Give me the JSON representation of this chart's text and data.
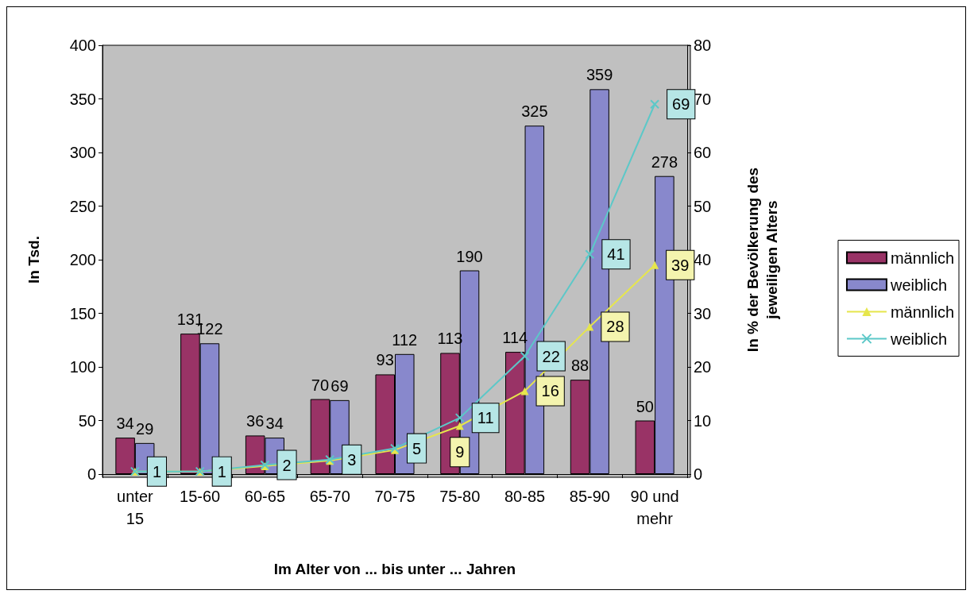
{
  "chart_data": {
    "type": "bar",
    "xlabel": "Im Alter von ... bis unter ... Jahren",
    "ylabel": "In Tsd.",
    "y2label": "In % der Bevölkerung des\njeweiligen Alters",
    "categories": [
      "unter\n15",
      "15-60",
      "60-65",
      "65-70",
      "70-75",
      "75-80",
      "80-85",
      "85-90",
      "90 und\nmehr"
    ],
    "series": [
      {
        "name": "männlich",
        "color": "#993366",
        "values": [
          34,
          131,
          36,
          70,
          93,
          113,
          114,
          88,
          50
        ],
        "value_labels": [
          "34",
          "131",
          "36",
          "70",
          "93",
          "113",
          "114",
          "88",
          "50"
        ]
      },
      {
        "name": "weiblich",
        "color": "#8888cc",
        "values": [
          29,
          122,
          34,
          69,
          112,
          190,
          325,
          359,
          278
        ],
        "value_labels": [
          "29",
          "122",
          "34",
          "69",
          "112",
          "190",
          "325",
          "359",
          "278"
        ]
      },
      {
        "name": "männlich",
        "type": "line",
        "axis": "y2",
        "color": "#e6e64c",
        "marker": "triangle",
        "values": [
          0.5,
          0.5,
          1.5,
          2.5,
          4.5,
          9,
          15.5,
          27.5,
          39
        ],
        "value_labels": [
          null,
          null,
          null,
          null,
          null,
          "9",
          "16",
          "28",
          "39"
        ]
      },
      {
        "name": "weiblich",
        "type": "line",
        "axis": "y2",
        "color": "#5cc8c8",
        "marker": "cross",
        "values": [
          0.5,
          0.5,
          1.7,
          2.7,
          4.8,
          10.5,
          22,
          41,
          69
        ],
        "value_labels": [
          "1",
          "1",
          "2",
          "3",
          "5",
          "11",
          "22",
          "41",
          "69"
        ]
      }
    ],
    "ylim": [
      0,
      400
    ],
    "yticks": [
      0,
      50,
      100,
      150,
      200,
      250,
      300,
      350,
      400
    ],
    "y2lim": [
      0,
      80
    ],
    "y2ticks": [
      0,
      10,
      20,
      30,
      40,
      50,
      60,
      70,
      80
    ],
    "grid": false,
    "legend": "right"
  }
}
